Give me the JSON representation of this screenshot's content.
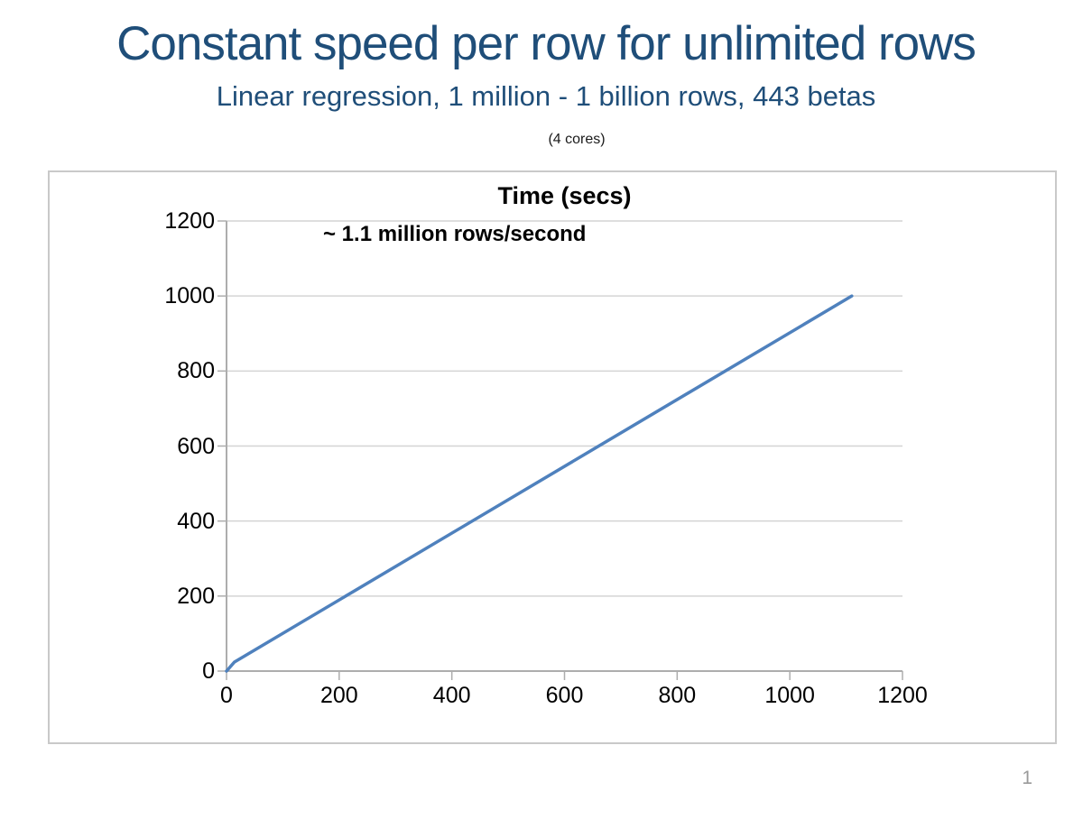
{
  "slide": {
    "title": "Constant speed per row for unlimited rows",
    "subtitle": "Linear regression, 1 million - 1 billion rows, 443 betas",
    "note": "(4 cores)",
    "page_number": "1"
  },
  "colors": {
    "title_text": "#1F4E79",
    "line": "#4F81BD",
    "gridline": "#D4D4D4",
    "axis": "#ADADAD",
    "frame_border": "#C9C9C9",
    "page_number": "#9A9A9A"
  },
  "chart_data": {
    "type": "line",
    "title": "Time (secs)",
    "annotation": "~ 1.1 million rows/second",
    "xlabel": "",
    "ylabel": "",
    "xlim": [
      0,
      1200
    ],
    "ylim": [
      0,
      1200
    ],
    "xticks": [
      0,
      200,
      400,
      600,
      800,
      1000,
      1200
    ],
    "yticks": [
      0,
      200,
      400,
      600,
      800,
      1000,
      1200
    ],
    "gridlines": "horizontal",
    "legend": "none",
    "series": [
      {
        "name": "Time (secs)",
        "points": [
          [
            0,
            0
          ],
          [
            14,
            24
          ],
          [
            1110,
            1000
          ]
        ]
      }
    ]
  }
}
